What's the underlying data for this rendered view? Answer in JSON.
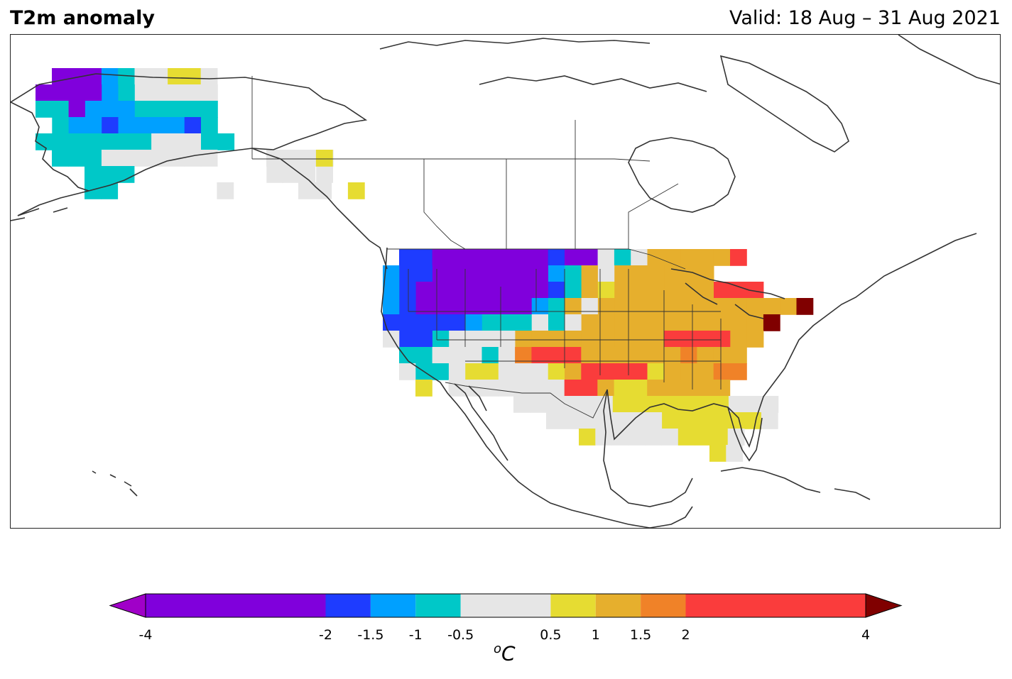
{
  "header": {
    "title": "T2m anomaly",
    "valid": "Valid: 18 Aug – 31 Aug 2021"
  },
  "colorbar": {
    "units_prefix": "o",
    "units_main": "C",
    "ticks": [
      "-4",
      "-2",
      "-1.5",
      "-1",
      "-0.5",
      "0.5",
      "1",
      "1.5",
      "2",
      "4"
    ],
    "bins": [
      {
        "from": -4,
        "to": -2,
        "color": "#8000dc"
      },
      {
        "from": -2,
        "to": -1.5,
        "color": "#1e3cff"
      },
      {
        "from": -1.5,
        "to": -1,
        "color": "#00a0ff"
      },
      {
        "from": -1,
        "to": -0.5,
        "color": "#00c8c8"
      },
      {
        "from": -0.5,
        "to": 0.5,
        "color": "#e6e6e6"
      },
      {
        "from": 0.5,
        "to": 1,
        "color": "#e6dc32"
      },
      {
        "from": 1,
        "to": 1.5,
        "color": "#e6af2d"
      },
      {
        "from": 1.5,
        "to": 2,
        "color": "#f08228"
      },
      {
        "from": 2,
        "to": 4,
        "color": "#fa3c3c"
      }
    ],
    "under_color": "#a000c8",
    "over_color": "#800000"
  },
  "map": {
    "region": "North America",
    "variable": "2-metre temperature anomaly",
    "legend_position": "bottom"
  }
}
